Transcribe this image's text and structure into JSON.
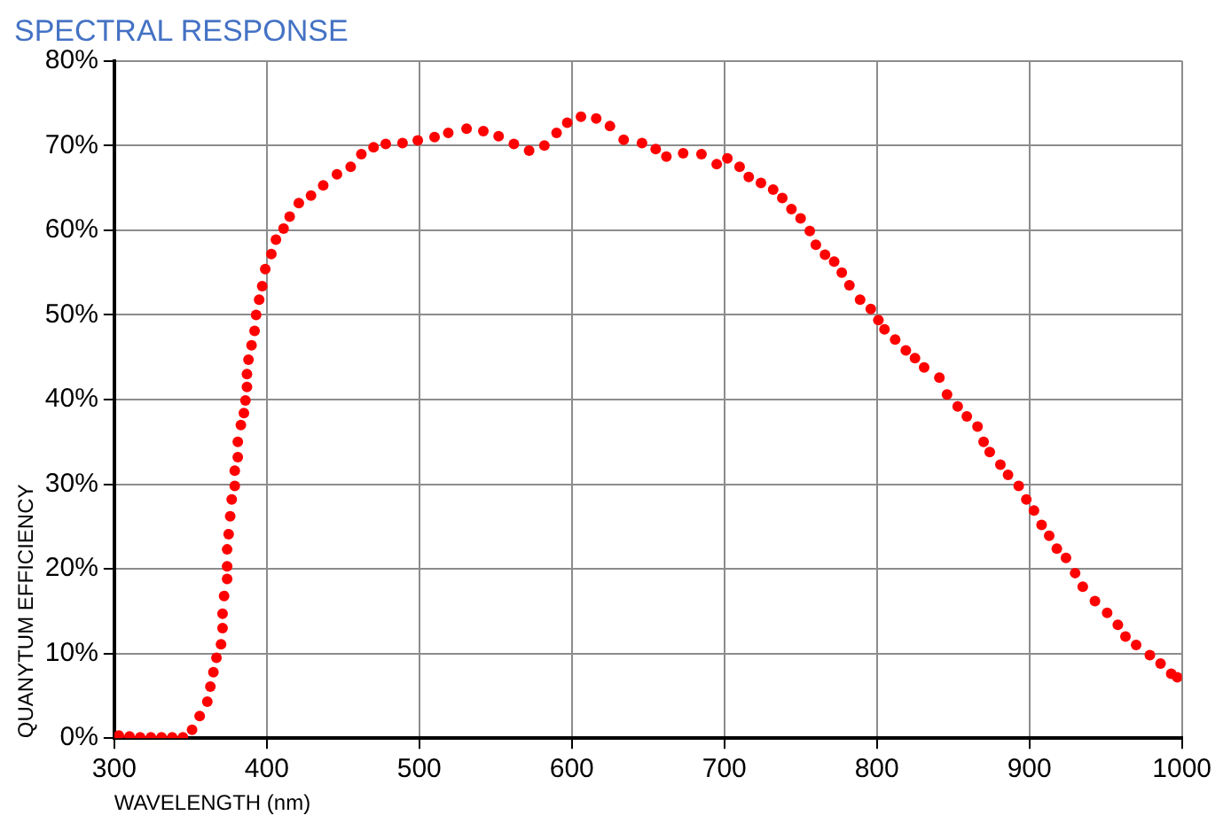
{
  "chart_data": {
    "type": "scatter",
    "title": "SPECTRAL RESPONSE",
    "xlabel": "WAVELENGTH (nm)",
    "ylabel": "QUANYTUM EFFICIENCY",
    "series": [
      {
        "color": "#ff0000",
        "x": [
          303,
          310,
          317,
          324,
          331,
          338,
          345,
          351,
          356,
          361,
          363,
          365,
          367,
          370,
          371,
          371,
          372,
          374,
          374,
          374,
          375,
          376,
          377,
          379,
          379,
          381,
          381,
          383,
          385,
          386,
          387,
          387,
          388,
          390,
          392,
          393,
          395,
          397,
          399,
          403,
          406,
          411,
          415,
          421,
          429,
          437,
          446,
          455,
          462,
          470,
          478,
          489,
          499,
          510,
          519,
          531,
          542,
          552,
          562,
          572,
          582,
          590,
          597,
          606,
          616,
          625,
          634,
          646,
          655,
          662,
          673,
          685,
          695,
          702,
          710,
          716,
          724,
          732,
          738,
          744,
          750,
          756,
          760,
          766,
          772,
          777,
          782,
          789,
          796,
          801,
          805,
          812,
          819,
          825,
          831,
          841,
          846,
          853,
          859,
          866,
          870,
          874,
          881,
          886,
          893,
          898,
          903,
          908,
          913,
          918,
          924,
          930,
          935,
          943,
          951,
          958,
          963,
          970,
          979,
          986,
          993,
          997
        ],
        "values": [
          0.3,
          0.2,
          0.1,
          0.1,
          0.1,
          0.1,
          0.1,
          1,
          2.6,
          4.3,
          6.1,
          7.8,
          9.5,
          11.1,
          13,
          14.7,
          16.8,
          18.8,
          20.3,
          22.3,
          24.1,
          26.2,
          28.2,
          29.8,
          31.6,
          33.2,
          35,
          37,
          38.4,
          39.9,
          41.5,
          43,
          44.7,
          46.4,
          48.1,
          50,
          51.8,
          53.4,
          55.4,
          57.2,
          58.9,
          60.2,
          61.6,
          63.2,
          64.1,
          65.3,
          66.6,
          67.5,
          69,
          69.8,
          70.2,
          70.3,
          70.6,
          71,
          71.5,
          72,
          71.7,
          71.1,
          70.2,
          69.4,
          70,
          71.5,
          72.7,
          73.4,
          73.2,
          72.3,
          70.7,
          70.3,
          69.6,
          68.7,
          69.1,
          69,
          67.8,
          68.5,
          67.5,
          66.3,
          65.6,
          64.8,
          63.8,
          62.5,
          61.4,
          59.9,
          58.3,
          57.1,
          56.3,
          55,
          53.5,
          51.8,
          50.7,
          49.4,
          48.3,
          47.1,
          45.8,
          44.9,
          43.8,
          42.6,
          40.6,
          39.2,
          38,
          36.8,
          35,
          33.8,
          32.3,
          31.1,
          29.8,
          28.2,
          26.9,
          25.2,
          23.9,
          22.4,
          21.3,
          19.5,
          17.9,
          16.2,
          14.8,
          13.4,
          12,
          11,
          9.8,
          8.8,
          7.6,
          7.2
        ]
      }
    ],
    "xlim": [
      300,
      1000
    ],
    "xticks": [
      300,
      400,
      500,
      600,
      700,
      800,
      900,
      1000
    ],
    "ylim": [
      0,
      80
    ],
    "yticks": [
      {
        "value": 0,
        "label": "0%"
      },
      {
        "value": 10,
        "label": "10%"
      },
      {
        "value": 20,
        "label": "20%"
      },
      {
        "value": 30,
        "label": "30%"
      },
      {
        "value": 40,
        "label": "40%"
      },
      {
        "value": 50,
        "label": "50%"
      },
      {
        "value": 60,
        "label": "60%"
      },
      {
        "value": 70,
        "label": "70%"
      },
      {
        "value": 80,
        "label": "80%"
      }
    ],
    "grid": true,
    "marker": "circle"
  }
}
